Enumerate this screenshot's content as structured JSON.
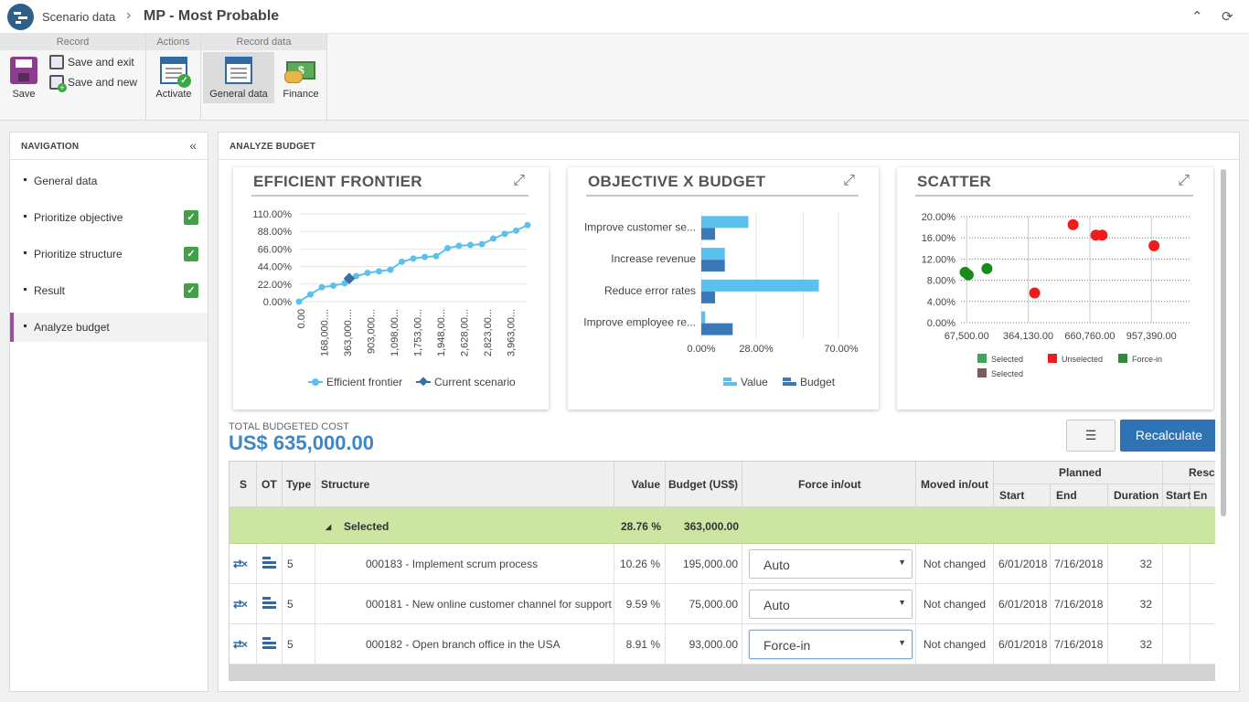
{
  "header": {
    "app": "Scenario data",
    "separator": "›",
    "title": "MP - Most Probable",
    "collapse_icon": "⌃",
    "refresh_icon": "⟳"
  },
  "ribbon": {
    "groups": {
      "record": "Record",
      "actions": "Actions",
      "record_data": "Record data"
    },
    "save": "Save",
    "save_and_exit": "Save and exit",
    "save_and_new": "Save and new",
    "activate": "Activate",
    "general_data": "General data",
    "finance": "Finance"
  },
  "navigation": {
    "title": "NAVIGATION",
    "collapse_icon": "«",
    "check": "✓",
    "items": [
      {
        "label": "General data",
        "checked": false
      },
      {
        "label": "Prioritize objective",
        "checked": true
      },
      {
        "label": "Prioritize structure",
        "checked": true
      },
      {
        "label": "Result",
        "checked": true
      },
      {
        "label": "Analyze budget",
        "checked": false,
        "active": true
      }
    ]
  },
  "main": {
    "title": "ANALYZE BUDGET",
    "expand_icon": "⤢",
    "total_label": "TOTAL BUDGETED COST",
    "total_value": "US$ 635,000.00",
    "list_icon": "☰",
    "recalculate": "Recalculate"
  },
  "chart_data": [
    {
      "type": "line",
      "title": "EFFICIENT FRONTIER",
      "yticks": [
        "110.00%",
        "88.00%",
        "66.00%",
        "44.00%",
        "22.00%",
        "0.00%"
      ],
      "ylim": [
        0,
        110
      ],
      "xticks": [
        "0.00",
        "168,000....",
        "363,000....",
        "903,000...",
        "1,098,00...",
        "1,753,00...",
        "1,948,00...",
        "2,628,00...",
        "2,823,00...",
        "3,963,00..."
      ],
      "series": [
        {
          "name": "Efficient frontier",
          "color": "#5bc1ec",
          "values": [
            0,
            9,
            18,
            20,
            23,
            32,
            36,
            38,
            40,
            50,
            54,
            56,
            57,
            67,
            70,
            71,
            72,
            79,
            85,
            89,
            96
          ]
        },
        {
          "name": "Current scenario",
          "color": "#3a6ea5",
          "x_index": 3,
          "value": 29
        }
      ],
      "legend": "bottom"
    },
    {
      "type": "bar",
      "orientation": "horizontal",
      "title": "OBJECTIVE X BUDGET",
      "categories": [
        "Improve customer se...",
        "Increase revenue",
        "Reduce error rates",
        "Improve employee re..."
      ],
      "xticks": [
        "0.00%",
        "28.00%",
        "70.00%"
      ],
      "xlim": [
        0,
        70
      ],
      "series": [
        {
          "name": "Value",
          "color": "#5bc1ec",
          "values": [
            24,
            12,
            60,
            2
          ]
        },
        {
          "name": "Budget",
          "color": "#3a78b8",
          "values": [
            7,
            12,
            7,
            16
          ]
        }
      ],
      "legend": "bottom"
    },
    {
      "type": "scatter",
      "title": "SCATTER",
      "yticks": [
        "20.00%",
        "16.00%",
        "12.00%",
        "8.00%",
        "4.00%",
        "0.00%"
      ],
      "ylim": [
        0,
        20
      ],
      "xticks": [
        "67,500.00",
        "364,130.00",
        "660,760.00",
        "957,390.00"
      ],
      "xlim": [
        40000,
        1150000
      ],
      "points": [
        {
          "x": 60000,
          "y": 9.5,
          "color": "#1a8a1a"
        },
        {
          "x": 75000,
          "y": 9.0,
          "color": "#1a8a1a"
        },
        {
          "x": 165000,
          "y": 10.2,
          "color": "#1a8a1a"
        },
        {
          "x": 395000,
          "y": 5.6,
          "color": "#ee1c1c"
        },
        {
          "x": 580000,
          "y": 18.5,
          "color": "#ee1c1c"
        },
        {
          "x": 690000,
          "y": 16.5,
          "color": "#ee1c1c"
        },
        {
          "x": 720000,
          "y": 16.5,
          "color": "#ee1c1c"
        },
        {
          "x": 970000,
          "y": 14.5,
          "color": "#ee1c1c"
        }
      ],
      "legend": [
        {
          "name": "Selected",
          "color": "#3da75a"
        },
        {
          "name": "Unselected",
          "color": "#ee1c1c"
        },
        {
          "name": "Force-in",
          "color": "#2f8a3a"
        },
        {
          "name": "Selected",
          "color": "#7b5b5b"
        }
      ]
    }
  ],
  "grid": {
    "headers": {
      "s": "S",
      "ot": "OT",
      "type": "Type",
      "structure": "Structure",
      "value": "Value",
      "budget": "Budget (US$)",
      "force": "Force in/out",
      "moved": "Moved in/out",
      "planned": "Planned",
      "start": "Start",
      "end": "End",
      "duration": "Duration",
      "resched": "Resch",
      "rstart": "Start",
      "rend": "En"
    },
    "group": {
      "toggle": "◢",
      "label": "Selected",
      "value": "28.76 %",
      "budget": "363,000.00"
    },
    "rows": [
      {
        "type": "5",
        "structure": "000183 - Implement scrum process",
        "value": "10.26 %",
        "budget": "195,000.00",
        "force": "Auto",
        "moved": "Not changed",
        "start": "6/01/2018",
        "end": "7/16/2018",
        "duration": "32"
      },
      {
        "type": "5",
        "structure": "000181 - New online customer channel for support",
        "value": "9.59 %",
        "budget": "75,000.00",
        "force": "Auto",
        "moved": "Not changed",
        "start": "6/01/2018",
        "end": "7/16/2018",
        "duration": "32"
      },
      {
        "type": "5",
        "structure": "000182 - Open branch office in the USA",
        "value": "8.91 %",
        "budget": "93,000.00",
        "force": "Force-in",
        "moved": "Not changed",
        "start": "6/01/2018",
        "end": "7/16/2018",
        "duration": "32"
      }
    ],
    "caret": "▼",
    "swap_icon": "⇄×"
  }
}
